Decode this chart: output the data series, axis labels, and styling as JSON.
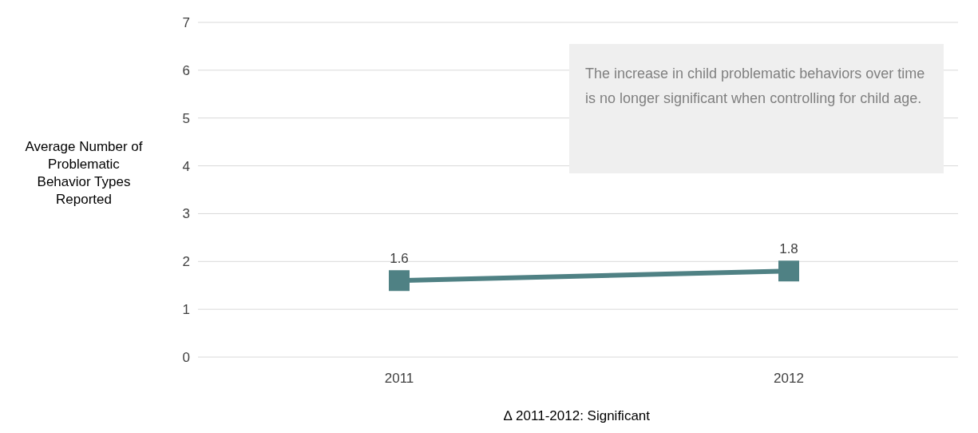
{
  "chart_data": {
    "type": "line",
    "ylabel": "Average Number of Problematic Behavior Types Reported",
    "categories": [
      "2011",
      "2012"
    ],
    "series": [
      {
        "color": "#4f8184",
        "values": [
          1.6,
          1.8
        ]
      }
    ],
    "ylim": [
      0,
      7
    ],
    "yticks": [
      0,
      1,
      2,
      3,
      4,
      5,
      6,
      7
    ],
    "grid": "y",
    "marker": "square",
    "line_style": "solid",
    "data_labels": true,
    "annotations": [
      "The increase in child problematic behaviors over time is no longer significant when controlling for child age.",
      "∆ 2011-2012: Significant"
    ]
  }
}
